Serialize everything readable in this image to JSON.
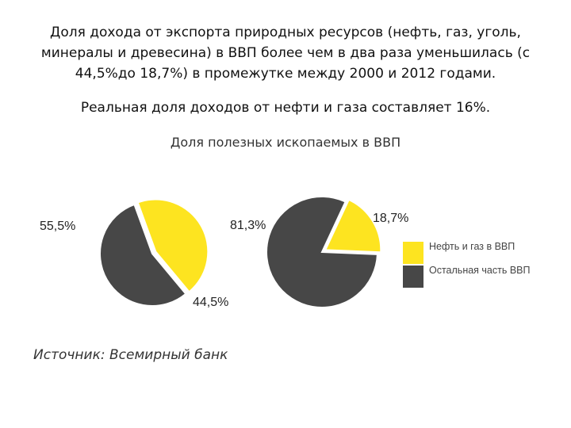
{
  "intro": [
    "Доля дохода от экспорта природных ресурсов (нефть, газ, уголь,",
    "минералы и древесина) в ВВП более чем в два раза уменьшилась (с",
    "44,5%до 18,7%) в промежутке между 2000 и 2012 годами."
  ],
  "subtitle": "Реальная доля доходов от нефти и газа составляет 16%.",
  "source": "Источник: Всемирный банк",
  "colors": {
    "oil_gas": "#fde420",
    "rest": "#474747"
  },
  "chart_data": {
    "type": "pie",
    "title": "Доля полезных ископаемых в ВВП",
    "legend": {
      "position": "right",
      "entries": [
        "Нефть и газ в ВВП",
        "Остальная часть ВВП"
      ]
    },
    "charts": [
      {
        "slices": [
          {
            "name": "Нефть и газ в ВВП",
            "value": 44.5,
            "label": "44,5%",
            "exploded": true
          },
          {
            "name": "Остальная часть ВВП",
            "value": 55.5,
            "label": "55,5%"
          }
        ]
      },
      {
        "slices": [
          {
            "name": "Нефть и газ в ВВП",
            "value": 18.7,
            "label": "18,7%",
            "exploded": true
          },
          {
            "name": "Остальная часть ВВП",
            "value": 81.3,
            "label": "81,3%"
          }
        ]
      }
    ]
  }
}
